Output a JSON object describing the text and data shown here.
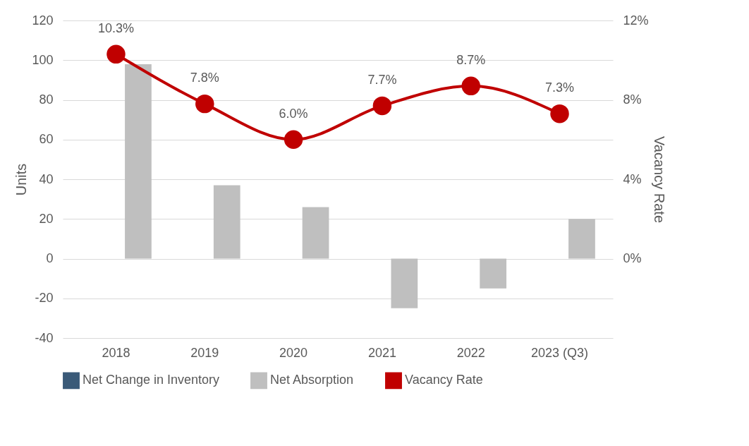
{
  "chart_data": {
    "type": "bar",
    "ylabel": "Units",
    "y2label": "Vacancy Rate",
    "categories": [
      "2018",
      "2019",
      "2020",
      "2021",
      "2022",
      "2023 (Q3)"
    ],
    "ylim": [
      -40,
      120
    ],
    "yticks": [
      -40,
      -20,
      0,
      20,
      40,
      60,
      80,
      100,
      120
    ],
    "y2lim": [
      -4,
      12
    ],
    "y2ticks": [
      {
        "value": 0,
        "label": "0%"
      },
      {
        "value": 4,
        "label": "4%"
      },
      {
        "value": 8,
        "label": "8%"
      },
      {
        "value": 12,
        "label": "12%"
      }
    ],
    "grid": "y",
    "legend": "bottom",
    "marker": "circle",
    "line_style": "solid",
    "series": [
      {
        "name": "Net Change in Inventory",
        "color": "#3a5a78",
        "values": [
          0,
          0,
          0,
          0,
          0,
          0
        ]
      },
      {
        "name": "Net Absorption",
        "color": "#bfbfbf",
        "values": [
          98,
          37,
          26,
          -25,
          -15,
          20
        ]
      },
      {
        "name": "Vacancy Rate",
        "type": "line",
        "axis": "y2",
        "color": "#c00000",
        "values": [
          10.3,
          7.8,
          6.0,
          7.7,
          8.7,
          7.3
        ],
        "value_labels": [
          "10.3%",
          "7.8%",
          "6.0%",
          "7.7%",
          "8.7%",
          "7.3%"
        ]
      }
    ]
  }
}
